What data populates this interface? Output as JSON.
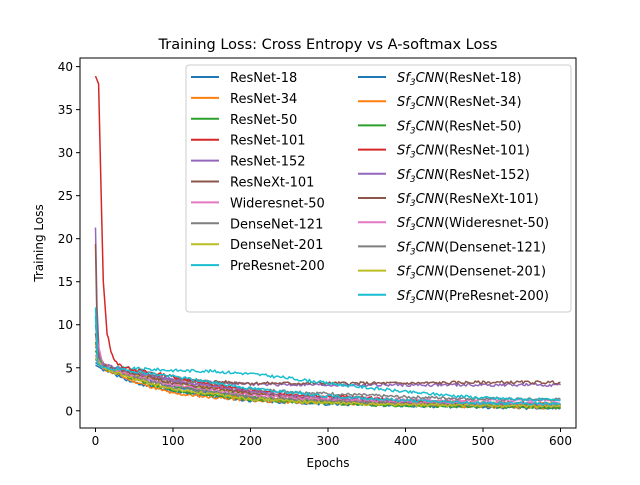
{
  "chart_data": {
    "type": "line",
    "title": "Training Loss: Cross Entropy vs A-softmax Loss",
    "xlabel": "Epochs",
    "ylabel": "Training Loss",
    "xlim": [
      -20,
      620
    ],
    "ylim": [
      -2,
      41
    ],
    "xticks": [
      "0",
      "100",
      "200",
      "300",
      "400",
      "500",
      "600"
    ],
    "yticks": [
      "0",
      "5",
      "10",
      "15",
      "20",
      "25",
      "30",
      "35",
      "40"
    ],
    "grid": false,
    "legend_position": "top-right",
    "sf3_prefix": {
      "base": "Sf",
      "sub": "3",
      "rest": "CNN"
    },
    "series": [
      {
        "name": "ResNet-18",
        "color": "#1f77b4",
        "points": [
          [
            0,
            5.6
          ],
          [
            10,
            5.0
          ],
          [
            50,
            4.0
          ],
          [
            100,
            2.8
          ],
          [
            200,
            1.5
          ],
          [
            300,
            1.0
          ],
          [
            400,
            0.7
          ],
          [
            500,
            0.5
          ],
          [
            600,
            0.4
          ]
        ]
      },
      {
        "name": "ResNet-34",
        "color": "#ff7f0e",
        "points": [
          [
            0,
            7.8
          ],
          [
            10,
            5.4
          ],
          [
            50,
            3.8
          ],
          [
            100,
            2.3
          ],
          [
            150,
            1.8
          ],
          [
            200,
            1.4
          ],
          [
            300,
            1.1
          ],
          [
            400,
            0.8
          ],
          [
            500,
            0.6
          ],
          [
            600,
            0.5
          ]
        ]
      },
      {
        "name": "ResNet-50",
        "color": "#2ca02c",
        "points": [
          [
            0,
            8.0
          ],
          [
            10,
            5.2
          ],
          [
            50,
            4.2
          ],
          [
            100,
            3.0
          ],
          [
            200,
            1.6
          ],
          [
            300,
            1.0
          ],
          [
            400,
            0.8
          ],
          [
            500,
            0.6
          ],
          [
            600,
            0.5
          ]
        ]
      },
      {
        "name": "ResNet-101",
        "color": "#d62728",
        "points": [
          [
            0,
            6.0
          ],
          [
            10,
            5.1
          ],
          [
            50,
            4.3
          ],
          [
            100,
            3.4
          ],
          [
            200,
            2.0
          ],
          [
            300,
            1.4
          ],
          [
            400,
            1.0
          ],
          [
            500,
            0.8
          ],
          [
            600,
            0.7
          ]
        ]
      },
      {
        "name": "ResNet-152",
        "color": "#9467bd",
        "points": [
          [
            0,
            21.3
          ],
          [
            2,
            12.0
          ],
          [
            5,
            6.0
          ],
          [
            15,
            5.0
          ],
          [
            50,
            4.5
          ],
          [
            100,
            3.8
          ],
          [
            150,
            3.3
          ],
          [
            200,
            3.1
          ],
          [
            300,
            3.0
          ],
          [
            400,
            3.0
          ],
          [
            500,
            3.0
          ],
          [
            600,
            3.0
          ]
        ]
      },
      {
        "name": "ResNeXt-101",
        "color": "#8c564b",
        "points": [
          [
            0,
            19.4
          ],
          [
            2,
            10.0
          ],
          [
            5,
            6.0
          ],
          [
            15,
            5.0
          ],
          [
            50,
            4.4
          ],
          [
            100,
            3.6
          ],
          [
            200,
            3.2
          ],
          [
            300,
            3.2
          ],
          [
            400,
            3.2
          ],
          [
            500,
            3.3
          ],
          [
            600,
            3.3
          ]
        ]
      },
      {
        "name": "Wideresnet-50",
        "color": "#e377c2",
        "points": [
          [
            0,
            9.0
          ],
          [
            10,
            5.2
          ],
          [
            50,
            4.4
          ],
          [
            100,
            3.5
          ],
          [
            200,
            2.3
          ],
          [
            300,
            1.6
          ],
          [
            400,
            1.3
          ],
          [
            500,
            1.2
          ],
          [
            600,
            1.2
          ]
        ]
      },
      {
        "name": "DenseNet-121",
        "color": "#7f7f7f",
        "points": [
          [
            0,
            7.5
          ],
          [
            10,
            5.1
          ],
          [
            50,
            4.5
          ],
          [
            100,
            3.5
          ],
          [
            200,
            2.5
          ],
          [
            300,
            2.0
          ],
          [
            400,
            1.6
          ],
          [
            500,
            1.4
          ],
          [
            600,
            1.3
          ]
        ]
      },
      {
        "name": "DenseNet-201",
        "color": "#bcbd22",
        "points": [
          [
            0,
            7.0
          ],
          [
            10,
            5.0
          ],
          [
            50,
            4.2
          ],
          [
            100,
            3.2
          ],
          [
            200,
            2.0
          ],
          [
            300,
            1.3
          ],
          [
            400,
            1.0
          ],
          [
            500,
            0.9
          ],
          [
            600,
            0.8
          ]
        ]
      },
      {
        "name": "PreResnet-200",
        "color": "#17becf",
        "points": [
          [
            0,
            12.0
          ],
          [
            3,
            6.0
          ],
          [
            10,
            5.1
          ],
          [
            50,
            4.9
          ],
          [
            100,
            4.7
          ],
          [
            150,
            4.6
          ],
          [
            200,
            4.3
          ],
          [
            250,
            3.8
          ],
          [
            300,
            3.2
          ],
          [
            400,
            2.2
          ],
          [
            500,
            1.5
          ],
          [
            600,
            1.2
          ]
        ]
      },
      {
        "name": "(ResNet-18)",
        "sf3": true,
        "color": "#1f77b4",
        "points": [
          [
            0,
            5.3
          ],
          [
            10,
            4.8
          ],
          [
            50,
            3.3
          ],
          [
            100,
            2.2
          ],
          [
            200,
            1.2
          ],
          [
            300,
            0.8
          ],
          [
            400,
            0.6
          ],
          [
            500,
            0.4
          ],
          [
            600,
            0.3
          ]
        ]
      },
      {
        "name": "(ResNet-34)",
        "sf3": true,
        "color": "#ff7f0e",
        "points": [
          [
            0,
            6.5
          ],
          [
            10,
            4.9
          ],
          [
            50,
            3.4
          ],
          [
            100,
            2.0
          ],
          [
            200,
            1.2
          ],
          [
            300,
            0.9
          ],
          [
            400,
            0.7
          ],
          [
            500,
            0.5
          ],
          [
            600,
            0.4
          ]
        ]
      },
      {
        "name": "(ResNet-50)",
        "sf3": true,
        "color": "#2ca02c",
        "points": [
          [
            0,
            7.0
          ],
          [
            10,
            5.0
          ],
          [
            50,
            3.6
          ],
          [
            100,
            2.4
          ],
          [
            200,
            1.3
          ],
          [
            300,
            0.9
          ],
          [
            400,
            0.6
          ],
          [
            500,
            0.5
          ],
          [
            600,
            0.4
          ]
        ]
      },
      {
        "name": "(ResNet-101)",
        "sf3": true,
        "color": "#d62728",
        "points": [
          [
            0,
            38.9
          ],
          [
            4,
            38.0
          ],
          [
            6,
            30.0
          ],
          [
            10,
            15.0
          ],
          [
            15,
            9.0
          ],
          [
            20,
            7.0
          ],
          [
            25,
            5.7
          ],
          [
            35,
            5.1
          ],
          [
            60,
            4.6
          ],
          [
            100,
            4.0
          ],
          [
            150,
            3.0
          ],
          [
            200,
            2.3
          ],
          [
            250,
            1.9
          ],
          [
            300,
            1.7
          ],
          [
            350,
            1.5
          ],
          [
            400,
            1.1
          ],
          [
            500,
            0.9
          ],
          [
            600,
            0.8
          ]
        ]
      },
      {
        "name": "(ResNet-152)",
        "sf3": true,
        "color": "#9467bd",
        "points": [
          [
            0,
            10.0
          ],
          [
            5,
            5.5
          ],
          [
            50,
            4.4
          ],
          [
            100,
            3.5
          ],
          [
            200,
            2.2
          ],
          [
            300,
            1.4
          ],
          [
            400,
            1.0
          ],
          [
            500,
            0.8
          ],
          [
            600,
            0.7
          ]
        ]
      },
      {
        "name": "(ResNeXt-101)",
        "sf3": true,
        "color": "#8c564b",
        "points": [
          [
            0,
            9.0
          ],
          [
            5,
            5.3
          ],
          [
            50,
            4.3
          ],
          [
            100,
            3.2
          ],
          [
            200,
            2.0
          ],
          [
            300,
            1.2
          ],
          [
            400,
            0.9
          ],
          [
            500,
            0.7
          ],
          [
            600,
            0.6
          ]
        ]
      },
      {
        "name": "(Wideresnet-50)",
        "sf3": true,
        "color": "#e377c2",
        "points": [
          [
            0,
            6.5
          ],
          [
            10,
            5.0
          ],
          [
            50,
            4.0
          ],
          [
            100,
            3.0
          ],
          [
            200,
            1.8
          ],
          [
            300,
            1.3
          ],
          [
            400,
            1.0
          ],
          [
            500,
            0.9
          ],
          [
            600,
            0.8
          ]
        ]
      },
      {
        "name": "(Densenet-121)",
        "sf3": true,
        "color": "#7f7f7f",
        "points": [
          [
            0,
            6.0
          ],
          [
            10,
            4.9
          ],
          [
            50,
            3.9
          ],
          [
            100,
            2.7
          ],
          [
            200,
            1.6
          ],
          [
            300,
            1.1
          ],
          [
            400,
            0.8
          ],
          [
            500,
            0.7
          ],
          [
            600,
            0.6
          ]
        ]
      },
      {
        "name": "(Densenet-201)",
        "sf3": true,
        "color": "#bcbd22",
        "points": [
          [
            0,
            6.2
          ],
          [
            10,
            4.9
          ],
          [
            50,
            3.7
          ],
          [
            100,
            2.5
          ],
          [
            200,
            1.4
          ],
          [
            300,
            0.9
          ],
          [
            400,
            0.7
          ],
          [
            500,
            0.6
          ],
          [
            600,
            0.5
          ]
        ]
      },
      {
        "name": "(PreResnet-200)",
        "sf3": true,
        "color": "#17becf",
        "points": [
          [
            0,
            11.0
          ],
          [
            3,
            5.5
          ],
          [
            10,
            5.0
          ],
          [
            50,
            4.6
          ],
          [
            100,
            4.0
          ],
          [
            200,
            2.6
          ],
          [
            300,
            1.7
          ],
          [
            400,
            1.2
          ],
          [
            500,
            0.9
          ],
          [
            600,
            0.8
          ]
        ]
      }
    ]
  }
}
